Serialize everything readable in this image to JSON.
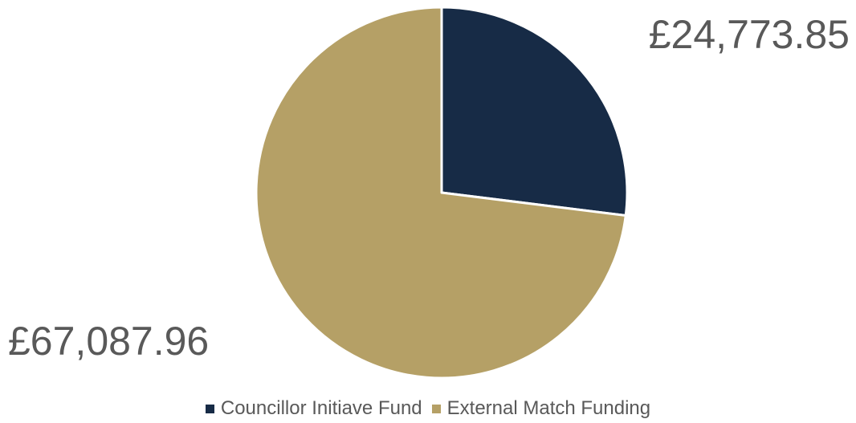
{
  "chart_data": {
    "type": "pie",
    "categories": [
      "Councillor Initiave Fund",
      "External Match Funding"
    ],
    "values": [
      24773.85,
      67087.96
    ],
    "value_labels": [
      "£24,773.85",
      "£67,087.96"
    ],
    "colors": [
      "#172b46",
      "#b5a066"
    ],
    "start_angle_deg": 0,
    "direction": "clockwise",
    "legend_position": "bottom"
  }
}
